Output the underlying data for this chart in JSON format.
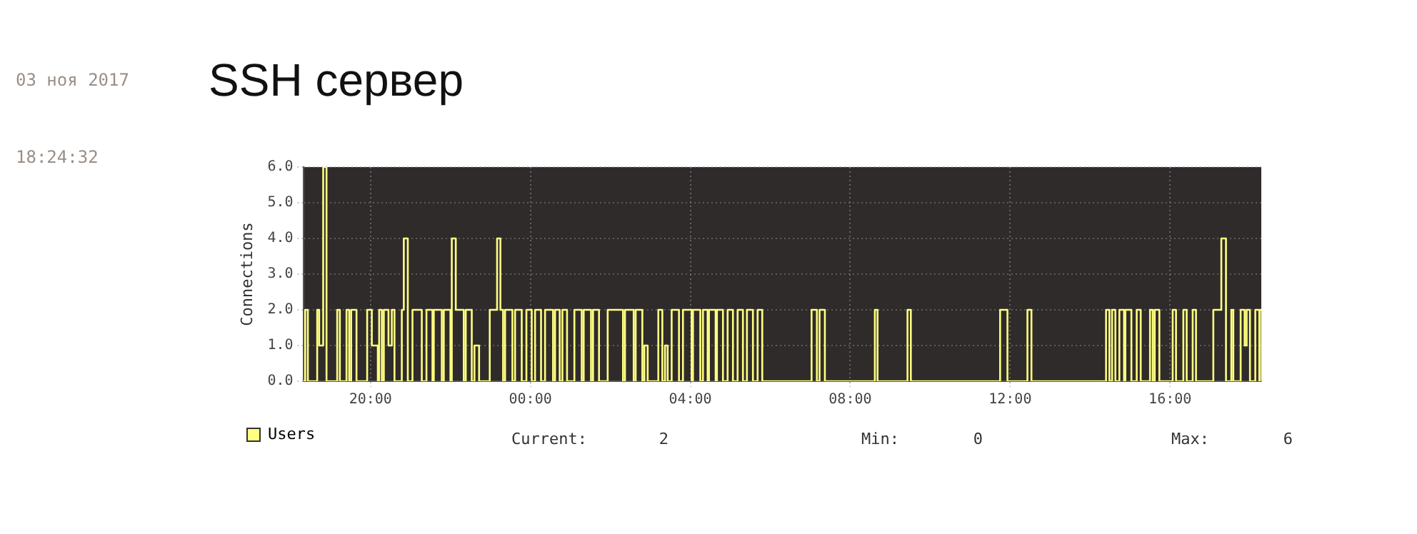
{
  "chart_data": {
    "type": "step",
    "title": "SSH сервер",
    "ylabel": "Connections",
    "annotations": [
      "03 ноя 2017",
      "18:24:32",
      "Current: 2",
      "Min: 0",
      "Max: 6"
    ],
    "xlim": [
      "2017-11-02T18:19",
      "2017-11-03T18:17"
    ],
    "xticks": [
      {
        "value": "2017-11-02T20:00",
        "label": "20:00"
      },
      {
        "value": "2017-11-03T00:00",
        "label": "00:00"
      },
      {
        "value": "2017-11-03T04:00",
        "label": "04:00"
      },
      {
        "value": "2017-11-03T08:00",
        "label": "08:00"
      },
      {
        "value": "2017-11-03T12:00",
        "label": "12:00"
      },
      {
        "value": "2017-11-03T16:00",
        "label": "16:00"
      }
    ],
    "ylim": [
      0,
      6
    ],
    "yticks": [
      {
        "value": 0,
        "label": "0.0"
      },
      {
        "value": 1,
        "label": "1.0"
      },
      {
        "value": 2,
        "label": "2.0"
      },
      {
        "value": 3,
        "label": "3.0"
      },
      {
        "value": 4,
        "label": "4.0"
      },
      {
        "value": 5,
        "label": "5.0"
      },
      {
        "value": 6,
        "label": "6.0"
      }
    ],
    "grid": true,
    "legend": "bottom left",
    "marker": "none",
    "line_style": "solid",
    "series": [
      {
        "name": "Users",
        "color": "#ffff80",
        "x": [
          "2017-11-02T18:19",
          "2017-11-02T18:22",
          "2017-11-02T18:26",
          "2017-11-02T18:40",
          "2017-11-02T18:43",
          "2017-11-02T18:49",
          "2017-11-02T18:54",
          "2017-11-02T19:10",
          "2017-11-02T19:14",
          "2017-11-02T19:24",
          "2017-11-02T19:28",
          "2017-11-02T19:31",
          "2017-11-02T19:39",
          "2017-11-02T19:55",
          "2017-11-02T20:02",
          "2017-11-02T20:11",
          "2017-11-02T20:13",
          "2017-11-02T20:17",
          "2017-11-02T20:20",
          "2017-11-02T20:27",
          "2017-11-02T20:32",
          "2017-11-02T20:36",
          "2017-11-02T20:47",
          "2017-11-02T20:50",
          "2017-11-02T20:56",
          "2017-11-02T21:03",
          "2017-11-02T21:17",
          "2017-11-02T21:24",
          "2017-11-02T21:33",
          "2017-11-02T21:35",
          "2017-11-02T21:47",
          "2017-11-02T21:50",
          "2017-11-02T22:00",
          "2017-11-02T22:02",
          "2017-11-02T22:08",
          "2017-11-02T22:20",
          "2017-11-02T22:23",
          "2017-11-02T22:32",
          "2017-11-02T22:36",
          "2017-11-02T22:43",
          "2017-11-02T22:59",
          "2017-11-02T23:10",
          "2017-11-02T23:15",
          "2017-11-02T23:19",
          "2017-11-02T23:22",
          "2017-11-02T23:33",
          "2017-11-02T23:37",
          "2017-11-02T23:47",
          "2017-11-02T23:54",
          "2017-11-03T00:02",
          "2017-11-03T00:07",
          "2017-11-03T00:16",
          "2017-11-03T00:22",
          "2017-11-03T00:34",
          "2017-11-03T00:37",
          "2017-11-03T00:44",
          "2017-11-03T00:48",
          "2017-11-03T00:55",
          "2017-11-03T01:06",
          "2017-11-03T01:17",
          "2017-11-03T01:20",
          "2017-11-03T01:31",
          "2017-11-03T01:34",
          "2017-11-03T01:43",
          "2017-11-03T01:56",
          "2017-11-03T02:19",
          "2017-11-03T02:22",
          "2017-11-03T02:35",
          "2017-11-03T02:38",
          "2017-11-03T02:48",
          "2017-11-03T02:51",
          "2017-11-03T02:56",
          "2017-11-03T03:12",
          "2017-11-03T03:18",
          "2017-11-03T03:22",
          "2017-11-03T03:26",
          "2017-11-03T03:32",
          "2017-11-03T03:43",
          "2017-11-03T03:49",
          "2017-11-03T04:02",
          "2017-11-03T04:04",
          "2017-11-03T04:15",
          "2017-11-03T04:19",
          "2017-11-03T04:26",
          "2017-11-03T04:28",
          "2017-11-03T04:38",
          "2017-11-03T04:40",
          "2017-11-03T04:49",
          "2017-11-03T04:56",
          "2017-11-03T05:04",
          "2017-11-03T05:11",
          "2017-11-03T05:19",
          "2017-11-03T05:25",
          "2017-11-03T05:34",
          "2017-11-03T05:41",
          "2017-11-03T05:48",
          "2017-11-03T07:02",
          "2017-11-03T07:10",
          "2017-11-03T07:14",
          "2017-11-03T07:22",
          "2017-11-03T08:37",
          "2017-11-03T08:41",
          "2017-11-03T09:26",
          "2017-11-03T09:31",
          "2017-11-03T11:45",
          "2017-11-03T11:56",
          "2017-11-03T12:26",
          "2017-11-03T12:32",
          "2017-11-03T14:24",
          "2017-11-03T14:29",
          "2017-11-03T14:33",
          "2017-11-03T14:38",
          "2017-11-03T14:44",
          "2017-11-03T14:51",
          "2017-11-03T14:53",
          "2017-11-03T15:02",
          "2017-11-03T15:10",
          "2017-11-03T15:16",
          "2017-11-03T15:30",
          "2017-11-03T15:34",
          "2017-11-03T15:37",
          "2017-11-03T15:44",
          "2017-11-03T16:04",
          "2017-11-03T16:09",
          "2017-11-03T16:20",
          "2017-11-03T16:25",
          "2017-11-03T16:34",
          "2017-11-03T16:39",
          "2017-11-03T17:05",
          "2017-11-03T17:17",
          "2017-11-03T17:24",
          "2017-11-03T17:32",
          "2017-11-03T17:35",
          "2017-11-03T17:46",
          "2017-11-03T17:52",
          "2017-11-03T17:55",
          "2017-11-03T18:00",
          "2017-11-03T18:08",
          "2017-11-03T18:14",
          "2017-11-03T18:15",
          "2017-11-03T18:17"
        ],
        "values": [
          0,
          2,
          0,
          2,
          1,
          6,
          0,
          2,
          0,
          2,
          0,
          2,
          0,
          2,
          1,
          0,
          2,
          0,
          2,
          1,
          2,
          0,
          2,
          4,
          0,
          2,
          0,
          2,
          0,
          2,
          0,
          2,
          0,
          4,
          2,
          0,
          2,
          0,
          1,
          0,
          2,
          4,
          2,
          0,
          2,
          0,
          2,
          0,
          2,
          0,
          2,
          0,
          2,
          0,
          2,
          0,
          2,
          0,
          2,
          0,
          2,
          0,
          2,
          0,
          2,
          0,
          2,
          0,
          2,
          0,
          1,
          0,
          2,
          0,
          1,
          0,
          2,
          0,
          2,
          0,
          2,
          0,
          2,
          0,
          2,
          0,
          2,
          0,
          2,
          0,
          2,
          0,
          2,
          0,
          2,
          0,
          2,
          0,
          2,
          0,
          2,
          0,
          2,
          0,
          2,
          0,
          2,
          0,
          2,
          0,
          2,
          0,
          2,
          0,
          2,
          0,
          2,
          0,
          2,
          0,
          2,
          0,
          2,
          0,
          2,
          0,
          2,
          0,
          2,
          4,
          0,
          2,
          0,
          2,
          1,
          2,
          0,
          2,
          0,
          2,
          2
        ]
      }
    ]
  }
}
